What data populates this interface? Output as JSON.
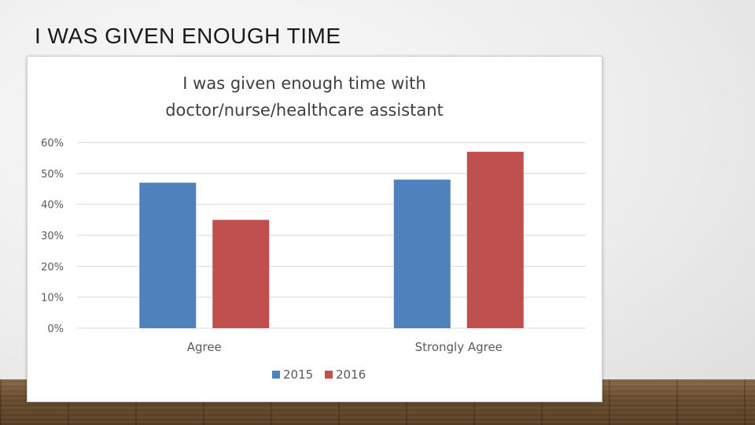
{
  "slide": {
    "title": "I WAS GIVEN ENOUGH TIME"
  },
  "colors": {
    "series_2015": "#4F81BD",
    "series_2016": "#C0504D"
  },
  "chart_data": {
    "type": "bar",
    "title": "I was given enough time with",
    "title_line2": "doctor/nurse/healthcare assistant",
    "categories": [
      "Agree",
      "Strongly Agree"
    ],
    "series": [
      {
        "name": "2015",
        "values": [
          47,
          48
        ]
      },
      {
        "name": "2016",
        "values": [
          35,
          57
        ]
      }
    ],
    "ylim": [
      0,
      60
    ],
    "yticks": [
      0,
      10,
      20,
      30,
      40,
      50,
      60
    ],
    "ytick_format": "%",
    "xlabel": "",
    "ylabel": "",
    "grid": true,
    "legend_position": "bottom"
  }
}
